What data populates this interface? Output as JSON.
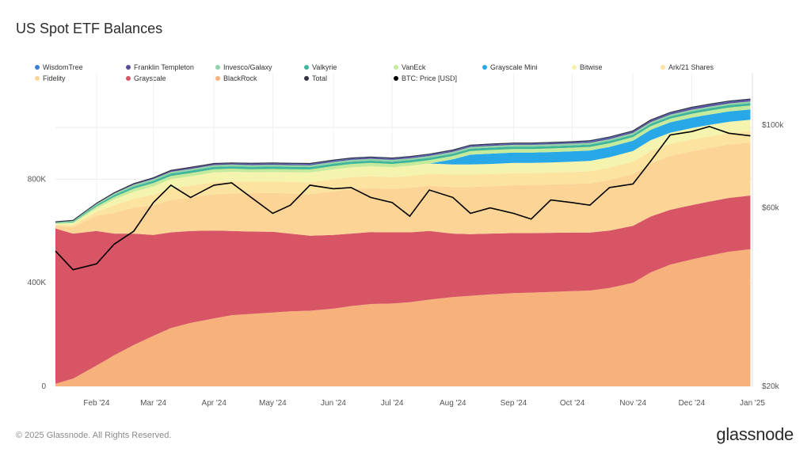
{
  "title": "US Spot ETF Balances",
  "footer": "© 2025 Glassnode. All Rights Reserved.",
  "brand": "glassnode",
  "legend": [
    {
      "label": "WisdomTree",
      "color": "#3b7dd8"
    },
    {
      "label": "Franklin Templeton",
      "color": "#5b4a9a"
    },
    {
      "label": "Invesco/Galaxy",
      "color": "#8fd3a6"
    },
    {
      "label": "Valkyrie",
      "color": "#3fb59a"
    },
    {
      "label": "VanEck",
      "color": "#c6ea9c"
    },
    {
      "label": "Grayscale Mini",
      "color": "#29a8e8"
    },
    {
      "label": "Bitwise",
      "color": "#f4f4ae"
    },
    {
      "label": "Ark/21 Shares",
      "color": "#fce3a0"
    },
    {
      "label": "Fidelity",
      "color": "#fcd596"
    },
    {
      "label": "Grayscale",
      "color": "#d85565"
    },
    {
      "label": "BlackRock",
      "color": "#f7b27c"
    },
    {
      "label": "Total",
      "color": "#333344"
    },
    {
      "label": "BTC: Price [USD]",
      "color": "#000000"
    }
  ],
  "chart_data": {
    "type": "area",
    "stacked": true,
    "x_ticks": [
      "Feb '24",
      "Mar '24",
      "Apr '24",
      "May '24",
      "Jun '24",
      "Jul '24",
      "Aug '24",
      "Sep '24",
      "Oct '24",
      "Nov '24",
      "Dec '24",
      "Jan '25"
    ],
    "y_left_ticks": [
      "0",
      "400K",
      "800K"
    ],
    "y_left_range": [
      0,
      1150000
    ],
    "y_right_ticks": [
      "$20k",
      "$60k",
      "$100k"
    ],
    "y_right_scale": "log",
    "y_right_range": [
      20000,
      125000
    ],
    "dates": [
      "2024-01-11",
      "2024-01-20",
      "2024-02-01",
      "2024-02-10",
      "2024-02-20",
      "2024-03-01",
      "2024-03-10",
      "2024-03-20",
      "2024-04-01",
      "2024-04-10",
      "2024-04-20",
      "2024-05-01",
      "2024-05-10",
      "2024-05-20",
      "2024-06-01",
      "2024-06-10",
      "2024-06-20",
      "2024-07-01",
      "2024-07-10",
      "2024-07-20",
      "2024-08-01",
      "2024-08-10",
      "2024-08-20",
      "2024-09-01",
      "2024-09-10",
      "2024-09-20",
      "2024-10-01",
      "2024-10-10",
      "2024-10-20",
      "2024-11-01",
      "2024-11-10",
      "2024-11-20",
      "2024-12-01",
      "2024-12-10",
      "2024-12-20",
      "2024-12-31"
    ],
    "series": [
      {
        "name": "BlackRock",
        "values": [
          10000,
          30000,
          80000,
          120000,
          160000,
          195000,
          225000,
          245000,
          262000,
          275000,
          280000,
          285000,
          290000,
          292000,
          300000,
          310000,
          318000,
          320000,
          325000,
          335000,
          345000,
          350000,
          355000,
          360000,
          362000,
          365000,
          368000,
          370000,
          380000,
          400000,
          440000,
          470000,
          490000,
          505000,
          520000,
          530000
        ]
      },
      {
        "name": "Grayscale",
        "values": [
          600000,
          560000,
          520000,
          470000,
          430000,
          390000,
          370000,
          355000,
          340000,
          325000,
          318000,
          312000,
          300000,
          290000,
          285000,
          280000,
          278000,
          275000,
          270000,
          265000,
          245000,
          238000,
          235000,
          232000,
          230000,
          228000,
          226000,
          224000,
          222000,
          220000,
          216000,
          212000,
          210000,
          209000,
          208000,
          207000
        ]
      },
      {
        "name": "Fidelity",
        "values": [
          10000,
          25000,
          60000,
          80000,
          100000,
          115000,
          125000,
          130000,
          140000,
          145000,
          148000,
          150000,
          155000,
          160000,
          168000,
          172000,
          170000,
          168000,
          172000,
          175000,
          180000,
          182000,
          183000,
          185000,
          186000,
          187000,
          188000,
          190000,
          195000,
          200000,
          205000,
          208000,
          208000,
          207000,
          206000,
          205000
        ]
      },
      {
        "name": "Ark/21 Shares",
        "values": [
          5000,
          8000,
          15000,
          30000,
          35000,
          40000,
          45000,
          45000,
          47000,
          47000,
          45000,
          44000,
          45000,
          46000,
          47000,
          46000,
          46000,
          45000,
          46000,
          47000,
          48000,
          48000,
          47000,
          47000,
          46000,
          46000,
          46000,
          47000,
          48000,
          48000,
          48000,
          47000,
          46000,
          45000,
          44000,
          44000
        ]
      },
      {
        "name": "Bitwise",
        "values": [
          3000,
          6000,
          12000,
          22000,
          27000,
          32000,
          35000,
          36000,
          37000,
          37000,
          36000,
          37000,
          37000,
          38000,
          38000,
          38000,
          38000,
          38000,
          39000,
          39000,
          39000,
          39000,
          39000,
          39000,
          39000,
          39000,
          40000,
          40000,
          40000,
          41000,
          42000,
          43000,
          44000,
          44000,
          44000,
          44000
        ]
      },
      {
        "name": "Grayscale Mini",
        "values": [
          0,
          0,
          0,
          0,
          0,
          0,
          0,
          0,
          0,
          0,
          0,
          0,
          0,
          0,
          0,
          0,
          0,
          0,
          0,
          0,
          20000,
          38000,
          40000,
          40000,
          40000,
          40000,
          40000,
          40000,
          40000,
          40000,
          40000,
          40000,
          40000,
          40000,
          40000,
          40000
        ]
      },
      {
        "name": "VanEck",
        "values": [
          3000,
          5000,
          8000,
          10000,
          12000,
          13000,
          13000,
          13000,
          13000,
          12000,
          12000,
          12000,
          12000,
          12000,
          13000,
          13000,
          13000,
          13000,
          13000,
          13000,
          13000,
          14000,
          14000,
          14000,
          14000,
          14000,
          14000,
          14000,
          14000,
          14000,
          14000,
          14000,
          15000,
          15000,
          15000,
          15000
        ]
      },
      {
        "name": "Valkyrie",
        "values": [
          2000,
          3000,
          5000,
          7000,
          8000,
          9000,
          9000,
          9000,
          9000,
          9000,
          9000,
          9000,
          9000,
          9000,
          9000,
          9000,
          9000,
          9000,
          9000,
          9000,
          9000,
          9000,
          9000,
          9000,
          9000,
          9000,
          9000,
          9000,
          9000,
          9000,
          9000,
          9000,
          9000,
          9000,
          9000,
          9000
        ]
      },
      {
        "name": "Invesco/Galaxy",
        "values": [
          2000,
          3000,
          5000,
          6000,
          7000,
          7000,
          7000,
          7000,
          7000,
          7000,
          7000,
          7000,
          7000,
          7000,
          7000,
          7000,
          7000,
          7000,
          7000,
          7000,
          7000,
          7000,
          7000,
          7000,
          7000,
          7000,
          7000,
          7000,
          7000,
          7000,
          7000,
          7000,
          7000,
          7000,
          7000,
          7000
        ]
      },
      {
        "name": "Franklin Templeton",
        "values": [
          500,
          1000,
          1500,
          2000,
          2500,
          3000,
          3500,
          4000,
          4000,
          4000,
          4000,
          4000,
          4000,
          4000,
          4000,
          4000,
          4000,
          4000,
          4000,
          4000,
          4000,
          4000,
          4000,
          4000,
          4000,
          4000,
          4000,
          5000,
          5000,
          5000,
          5000,
          5000,
          6000,
          6000,
          6000,
          6000
        ]
      },
      {
        "name": "WisdomTree",
        "values": [
          300,
          500,
          800,
          1000,
          1500,
          1500,
          2000,
          2000,
          2000,
          2000,
          3000,
          3000,
          3000,
          3000,
          3000,
          3000,
          3000,
          3000,
          3000,
          3000,
          3000,
          3000,
          3000,
          3000,
          3000,
          3000,
          3000,
          3000,
          3000,
          3000,
          3000,
          3000,
          3000,
          3000,
          3000,
          3000
        ]
      }
    ],
    "btc_price": {
      "name": "BTC: Price [USD]",
      "values": [
        46000,
        41000,
        42500,
        48000,
        52000,
        62000,
        69000,
        64000,
        69000,
        70000,
        64000,
        58000,
        61000,
        69000,
        67500,
        68000,
        64000,
        62000,
        57000,
        67000,
        64000,
        58000,
        60000,
        58000,
        56000,
        63000,
        62000,
        61000,
        68000,
        69500,
        80000,
        94000,
        96000,
        99000,
        95000,
        93500
      ]
    }
  }
}
